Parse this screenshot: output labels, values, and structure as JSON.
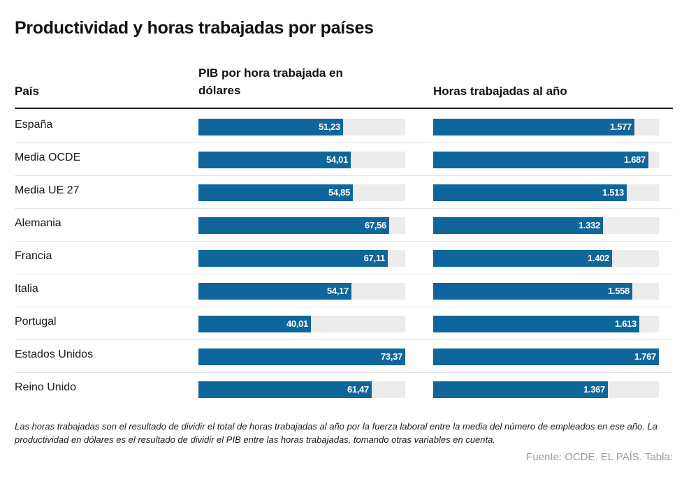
{
  "title": "Productividad y horas trabajadas por países",
  "headers": {
    "country": "País",
    "pib": "PIB por hora trabajada en dólares",
    "horas": "Horas trabajadas al año"
  },
  "chart_data": {
    "type": "bar",
    "categories": [
      "España",
      "Media OCDE",
      "Media UE 27",
      "Alemania",
      "Francia",
      "Italia",
      "Portugal",
      "Estados Unidos",
      "Reino Unido"
    ],
    "series": [
      {
        "name": "PIB por hora trabajada en dólares",
        "values": [
          51.23,
          54.01,
          54.85,
          67.56,
          67.11,
          54.17,
          40.01,
          73.37,
          61.47
        ],
        "labels": [
          "51,23",
          "54,01",
          "54,85",
          "67,56",
          "67,11",
          "54,17",
          "40,01",
          "73,37",
          "61,47"
        ],
        "max": 73.37
      },
      {
        "name": "Horas trabajadas al año",
        "values": [
          1577,
          1687,
          1513,
          1332,
          1402,
          1558,
          1613,
          1767,
          1367
        ],
        "labels": [
          "1.577",
          "1.687",
          "1.513",
          "1.332",
          "1.402",
          "1.558",
          "1.613",
          "1.767",
          "1.367"
        ],
        "max": 1767
      }
    ],
    "colors": {
      "bar": "#0e669c",
      "track": "#ececec"
    }
  },
  "note": "Las horas trabajadas son el resultado de dividir el total de horas trabajadas al año por la fuerza laboral entre la media del número de empleados en ese año. La productividad en dólares es el resultado de dividir el PIB entre las horas trabajadas, tomando otras variables en cuenta.",
  "source": "Fuente: OCDE. EL PAÍS. Tabla:"
}
